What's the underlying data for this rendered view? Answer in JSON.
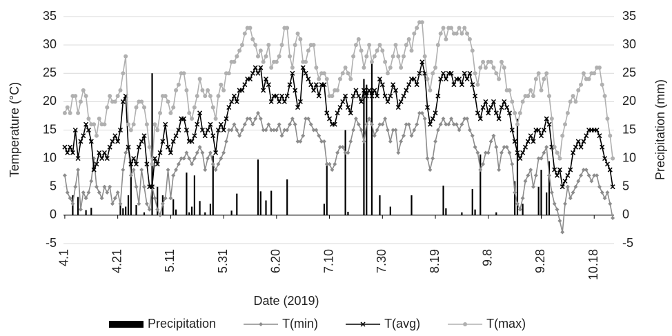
{
  "chart_data": {
    "type": "bar-line",
    "x_label": "Date (2019)",
    "y_label": "Temperature (°C)",
    "y2_label": "Precipitation (mm)",
    "categories": [
      "4.1",
      null,
      null,
      null,
      null,
      null,
      null,
      null,
      null,
      null,
      null,
      null,
      null,
      null,
      null,
      null,
      null,
      null,
      null,
      null,
      "4.21",
      null,
      null,
      null,
      null,
      null,
      null,
      null,
      null,
      null,
      null,
      null,
      null,
      null,
      null,
      null,
      null,
      null,
      null,
      null,
      "5.11",
      null,
      null,
      null,
      null,
      null,
      null,
      null,
      null,
      null,
      null,
      null,
      null,
      null,
      null,
      null,
      null,
      null,
      null,
      null,
      "5.31",
      null,
      null,
      null,
      null,
      null,
      null,
      null,
      null,
      null,
      null,
      null,
      null,
      null,
      null,
      null,
      null,
      null,
      null,
      null,
      "6.20",
      null,
      null,
      null,
      null,
      null,
      null,
      null,
      null,
      null,
      null,
      null,
      null,
      null,
      null,
      null,
      null,
      null,
      null,
      null,
      "7.10",
      null,
      null,
      null,
      null,
      null,
      null,
      null,
      null,
      null,
      null,
      null,
      null,
      null,
      null,
      null,
      null,
      null,
      null,
      null,
      "7.30",
      null,
      null,
      null,
      null,
      null,
      null,
      null,
      null,
      null,
      null,
      null,
      null,
      null,
      null,
      null,
      null,
      null,
      null,
      null,
      "8.19",
      null,
      null,
      null,
      null,
      null,
      null,
      null,
      null,
      null,
      null,
      null,
      null,
      null,
      null,
      null,
      null,
      null,
      null,
      null,
      "9.8",
      null,
      null,
      null,
      null,
      null,
      null,
      null,
      null,
      null,
      null,
      null,
      null,
      null,
      null,
      null,
      null,
      null,
      null,
      null,
      "9.28",
      null,
      null,
      null,
      null,
      null,
      null,
      null,
      null,
      null,
      null,
      null,
      null,
      null,
      null,
      null,
      null,
      null,
      null,
      null,
      "10.18",
      null,
      null,
      null,
      null,
      null,
      null,
      null
    ],
    "ylim": [
      -5,
      35
    ],
    "yticks": [
      -5,
      0,
      5,
      10,
      15,
      20,
      25,
      30,
      35
    ],
    "y2lim": [
      -5,
      35
    ],
    "y2ticks": [
      -5,
      0,
      5,
      10,
      15,
      20,
      25,
      30,
      35
    ],
    "grid": true,
    "legend": "bottom",
    "series": [
      {
        "name": "Precipitation",
        "type": "bar",
        "axis": "y2",
        "color": "#000000",
        "values": [
          0,
          0,
          0,
          3.5,
          0,
          3.2,
          0,
          0,
          0.9,
          0,
          1.3,
          0,
          0,
          0,
          0,
          0,
          0,
          0,
          0,
          0,
          0,
          1.8,
          1.2,
          1.5,
          3.5,
          9,
          0,
          1.8,
          0,
          0,
          0.5,
          0,
          0,
          25,
          0,
          5,
          0,
          3.5,
          0,
          0,
          0,
          2.8,
          1,
          0,
          0,
          0,
          7.5,
          0.5,
          1.5,
          7,
          0,
          2.5,
          0,
          0.5,
          0,
          2,
          10.5,
          0,
          0,
          0,
          0,
          0,
          0,
          0.8,
          0,
          3.8,
          0,
          0,
          0,
          0,
          0,
          0,
          0,
          9.8,
          4.2,
          0,
          2.6,
          0,
          4.3,
          0,
          0,
          0,
          0,
          0,
          6.3,
          0,
          0,
          0,
          0,
          0,
          0,
          0,
          0,
          0,
          0,
          0,
          0,
          0,
          2,
          9.3,
          0,
          0,
          0,
          0,
          0,
          0,
          15,
          0.6,
          0,
          0,
          0,
          0,
          0,
          24,
          23,
          0,
          27,
          0,
          0,
          3.5,
          0,
          0,
          0,
          1.5,
          0,
          0,
          0,
          0,
          0,
          0,
          0,
          3.5,
          0,
          0,
          0,
          0,
          0,
          0,
          0,
          0,
          0,
          0,
          0,
          5.2,
          1.2,
          0,
          0,
          0,
          0,
          0,
          0.5,
          0,
          0,
          0,
          4.6,
          1,
          0,
          10.7,
          0,
          0,
          0,
          0,
          0,
          0.5,
          0,
          0,
          0,
          0,
          0,
          0,
          6,
          17,
          0,
          2,
          0,
          0,
          0,
          0,
          0,
          5,
          8,
          0,
          4,
          9.5,
          0,
          0,
          0,
          0,
          0,
          0,
          0,
          0,
          0,
          0,
          0,
          0,
          0,
          0,
          0,
          0,
          0,
          0,
          0,
          0,
          0,
          0,
          0,
          0
        ]
      },
      {
        "name": "T(min)",
        "type": "line",
        "marker": "diamond",
        "color": "#8c8c8c",
        "values": [
          7,
          4,
          3,
          2,
          5,
          8,
          1,
          4,
          3,
          4,
          6,
          10,
          5,
          4,
          3,
          5,
          4,
          5,
          2,
          3,
          4,
          2,
          8,
          11,
          12,
          7,
          8,
          5,
          2,
          8,
          5,
          2,
          1,
          5,
          3,
          1,
          0,
          2,
          3,
          8,
          3,
          7,
          8,
          9,
          10,
          10,
          11,
          10,
          9,
          10,
          11,
          12,
          11,
          8,
          10,
          11,
          9,
          8,
          9,
          10,
          11,
          13,
          15,
          15,
          16,
          15,
          14,
          15,
          16,
          17,
          17,
          16,
          17,
          18,
          17,
          15,
          15,
          16,
          15,
          15,
          15,
          16,
          14,
          15,
          15,
          16,
          17,
          16,
          13,
          13,
          14,
          17,
          17,
          16,
          15,
          15,
          14,
          13,
          13,
          9,
          9,
          8,
          9,
          11,
          12,
          12,
          11,
          11,
          13,
          15,
          17,
          16,
          15,
          13,
          16,
          17,
          16,
          14,
          15,
          16,
          16,
          17,
          15,
          13,
          15,
          15,
          11,
          13,
          14,
          16,
          16,
          14,
          15,
          16,
          18,
          18,
          17,
          10,
          8,
          10,
          13,
          15,
          16,
          17,
          16,
          16,
          17,
          16,
          16,
          15,
          16,
          17,
          17,
          15,
          14,
          12,
          11,
          8,
          9,
          11,
          11,
          13,
          14,
          12,
          8,
          11,
          12,
          12,
          11,
          9,
          4,
          2,
          1,
          3,
          6,
          7,
          8,
          5,
          7,
          10,
          10,
          11,
          12,
          7,
          4,
          2,
          1,
          -1,
          -3,
          2,
          5,
          3,
          4,
          5,
          6,
          7,
          8,
          8,
          7,
          6,
          7,
          7,
          5,
          4,
          3,
          4,
          2,
          -0.5
        ]
      },
      {
        "name": "T(avg)",
        "type": "line",
        "marker": "x",
        "color": "#000000",
        "values": [
          12,
          11,
          12,
          11,
          15,
          10,
          13,
          14,
          16,
          15,
          13,
          8,
          9,
          11,
          10,
          11,
          10,
          12,
          13,
          14,
          13,
          15,
          20,
          21,
          12,
          9,
          10,
          9,
          12,
          13,
          14,
          9,
          5,
          5,
          10,
          9,
          11,
          13,
          16,
          12,
          11,
          13,
          14,
          15,
          17,
          17,
          15,
          13,
          13,
          14,
          16,
          18,
          15,
          14,
          15,
          16,
          14,
          11,
          15,
          16,
          15,
          17,
          19,
          20,
          21,
          20,
          22,
          22,
          23,
          24,
          24,
          25,
          26,
          25,
          26,
          22,
          24,
          23,
          20,
          21,
          21,
          20,
          21,
          20,
          21,
          23,
          25,
          22,
          19,
          20,
          26,
          25,
          24,
          23,
          22,
          23,
          21,
          23,
          23,
          18,
          17,
          16,
          16,
          18,
          19,
          20,
          21,
          19,
          18,
          21,
          22,
          21,
          20,
          22,
          21,
          22,
          21,
          22,
          21,
          24,
          23,
          21,
          20,
          21,
          23,
          22,
          19,
          20,
          21,
          22,
          23,
          24,
          24,
          23,
          25,
          27,
          25,
          19,
          16,
          17,
          18,
          21,
          24,
          25,
          24,
          25,
          25,
          23,
          24,
          24,
          23,
          25,
          24,
          25,
          23,
          21,
          18,
          17,
          19,
          20,
          18,
          19,
          20,
          18,
          17,
          19,
          20,
          19,
          18,
          15,
          13,
          11,
          10,
          11,
          12,
          13,
          14,
          13,
          15,
          15,
          14,
          15,
          17,
          16,
          12,
          8,
          7,
          8,
          5,
          6,
          7,
          8,
          11,
          12,
          13,
          12,
          13,
          14,
          15,
          15,
          15,
          15,
          14,
          12,
          10,
          9,
          8,
          5
        ]
      },
      {
        "name": "T(max)",
        "type": "line",
        "marker": "circle",
        "color": "#b0b0b0",
        "values": [
          18,
          19,
          18,
          21,
          21,
          18,
          20,
          22,
          21,
          17,
          16,
          16,
          14,
          17,
          16,
          16,
          19,
          21,
          20,
          20,
          21,
          22,
          25,
          28,
          16,
          15,
          16,
          19,
          20,
          20,
          19,
          16,
          12,
          9,
          16,
          15,
          18,
          21,
          21,
          20,
          18,
          19,
          22,
          23,
          25,
          25,
          22,
          18,
          17,
          19,
          21,
          24,
          22,
          21,
          22,
          21,
          19,
          17,
          21,
          23,
          22,
          25,
          25,
          27,
          27,
          28,
          29,
          30,
          32,
          33,
          33,
          31,
          30,
          28,
          29,
          27,
          28,
          30,
          26,
          27,
          27,
          28,
          30,
          33,
          33,
          28,
          26,
          30,
          32,
          31,
          27,
          27,
          29,
          30,
          30,
          26,
          24,
          25,
          25,
          24,
          21,
          21,
          22,
          22,
          24,
          25,
          26,
          25,
          24,
          28,
          30,
          31,
          29,
          26,
          28,
          30,
          27,
          28,
          29,
          30,
          29,
          27,
          25,
          26,
          28,
          30,
          28,
          26,
          28,
          30,
          31,
          29,
          32,
          33,
          34,
          34,
          28,
          24,
          22,
          25,
          26,
          30,
          32,
          33,
          31,
          33,
          33,
          32,
          32,
          33,
          32,
          33,
          32,
          31,
          29,
          25,
          23,
          26,
          27,
          26,
          27,
          27,
          26,
          25,
          24,
          27,
          26,
          22,
          22,
          20,
          18,
          16,
          18,
          20,
          21,
          21,
          22,
          21,
          24,
          25,
          22,
          24,
          25,
          21,
          17,
          12,
          11,
          10,
          14,
          16,
          18,
          20,
          21,
          20,
          22,
          23,
          25,
          24,
          24,
          25,
          25,
          26,
          26,
          23,
          21,
          17,
          14,
          10
        ]
      }
    ]
  }
}
